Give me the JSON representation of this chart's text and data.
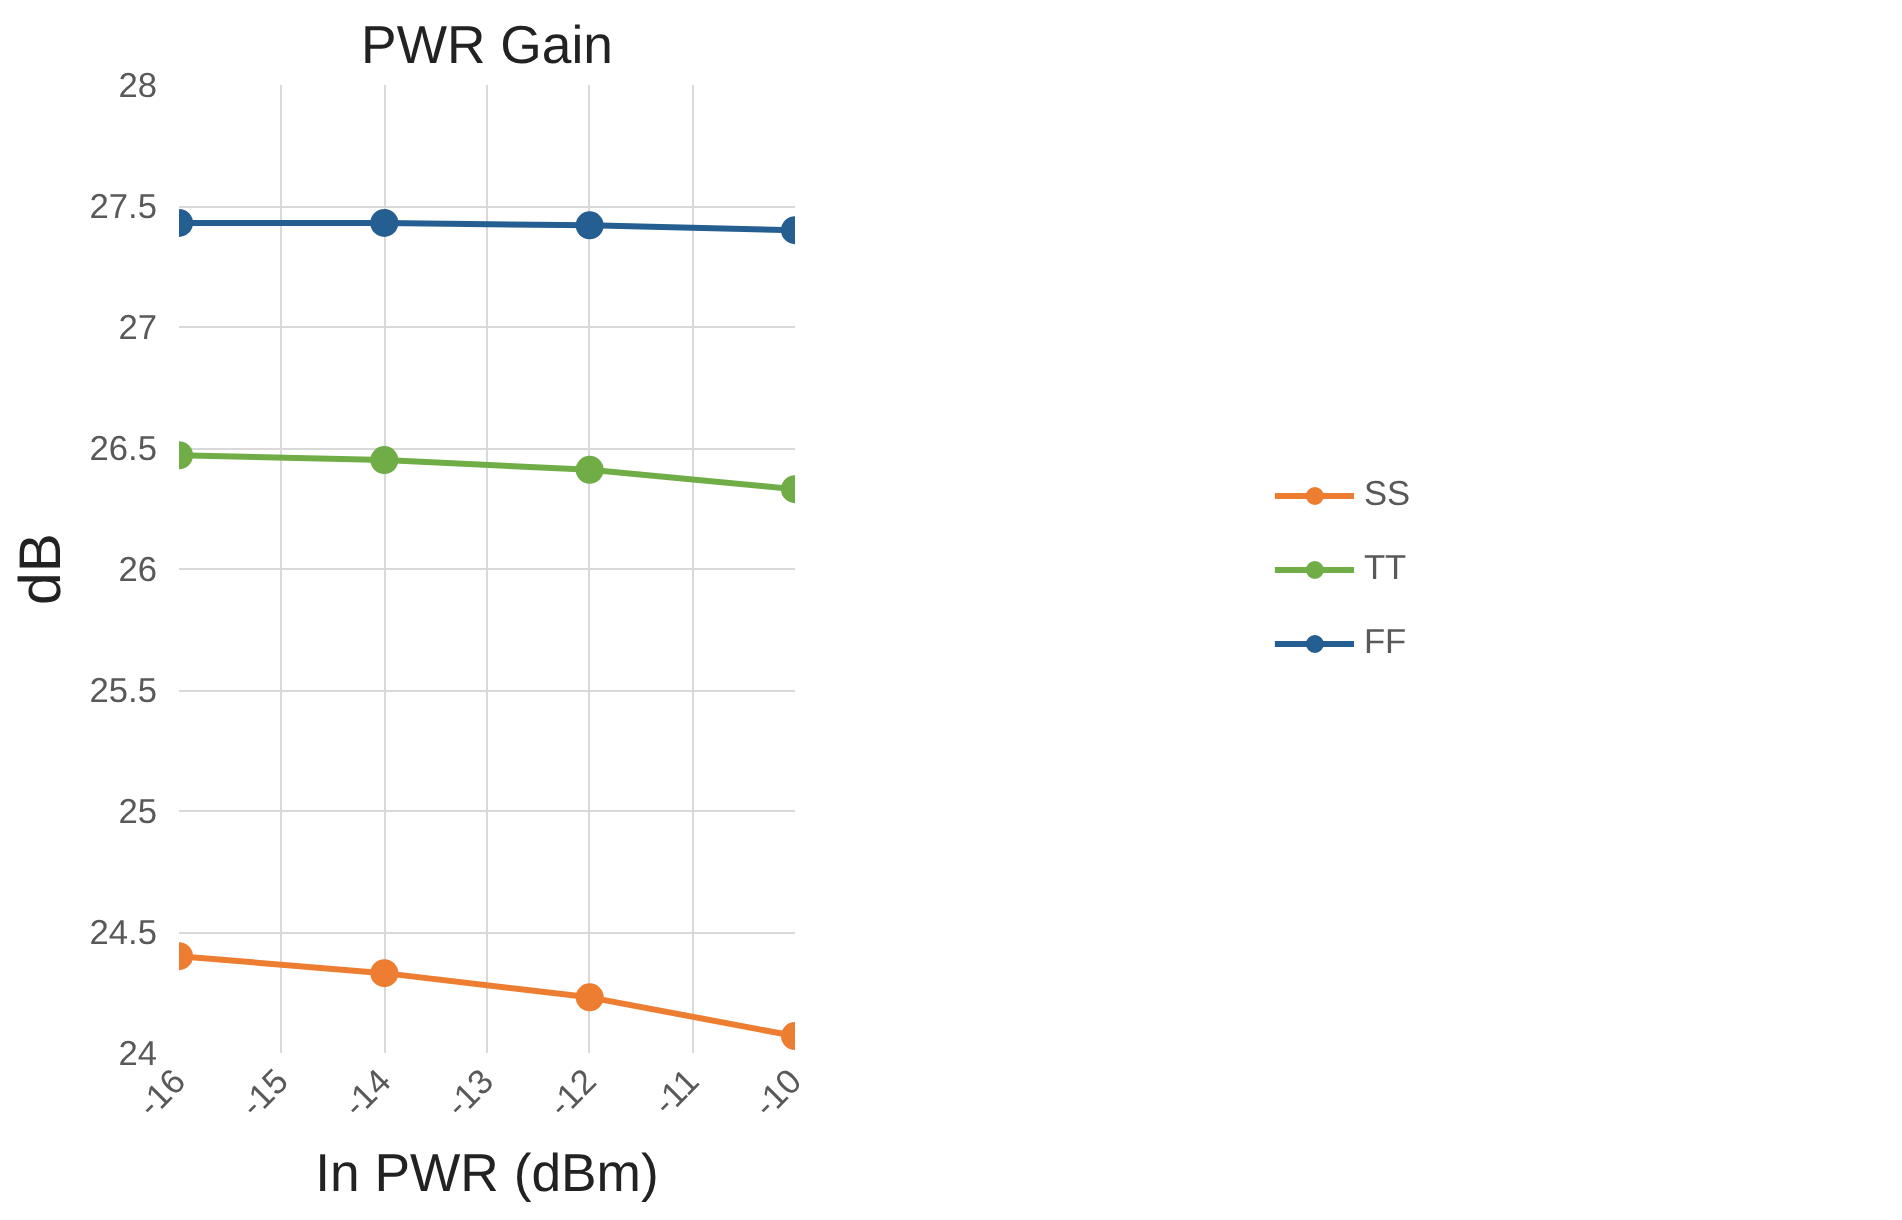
{
  "chart_data": {
    "type": "line",
    "title": "PWR Gain",
    "xlabel": "In PWR (dBm)",
    "ylabel": "dB",
    "x": [
      -16,
      -14,
      -12,
      -10
    ],
    "series": [
      {
        "name": "SS",
        "color": "#ed7d31",
        "values": [
          24.4,
          24.33,
          24.23,
          24.07
        ]
      },
      {
        "name": "TT",
        "color": "#70ad47",
        "values": [
          26.47,
          26.45,
          26.41,
          26.33
        ]
      },
      {
        "name": "FF",
        "color": "#255e91",
        "values": [
          27.43,
          27.43,
          27.42,
          27.4
        ]
      }
    ],
    "xlim": [
      -16,
      -10
    ],
    "xticks": [
      -16,
      -15,
      -14,
      -13,
      -12,
      -11,
      -10
    ],
    "ylim": [
      24,
      28
    ],
    "yticks": [
      24,
      24.5,
      25,
      25.5,
      26,
      26.5,
      27,
      27.5,
      28
    ],
    "grid": true,
    "legend": "right",
    "marker": "circle",
    "line_style": "solid"
  }
}
